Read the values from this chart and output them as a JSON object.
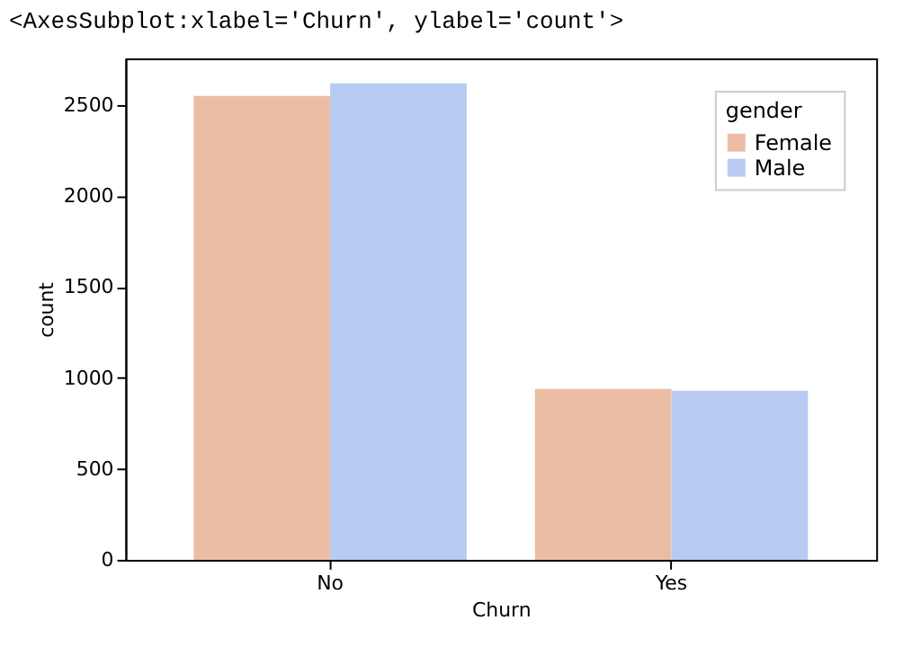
{
  "chart_data": {
    "type": "bar",
    "annotations": [
      "<AxesSubplot:xlabel='Churn', ylabel='count'>"
    ],
    "xlabel": "Churn",
    "ylabel": "count",
    "legend_title": "gender",
    "categories": [
      "No",
      "Yes"
    ],
    "series": [
      {
        "name": "Female",
        "color": "#ecbda5",
        "values": [
          2550,
          940
        ]
      },
      {
        "name": "Male",
        "color": "#b7cbf3",
        "values": [
          2620,
          930
        ]
      }
    ],
    "ylim": [
      0,
      2756
    ],
    "yticks": [
      0,
      500,
      1000,
      1500,
      2000,
      2500
    ],
    "grid": false,
    "legend": "top right"
  }
}
